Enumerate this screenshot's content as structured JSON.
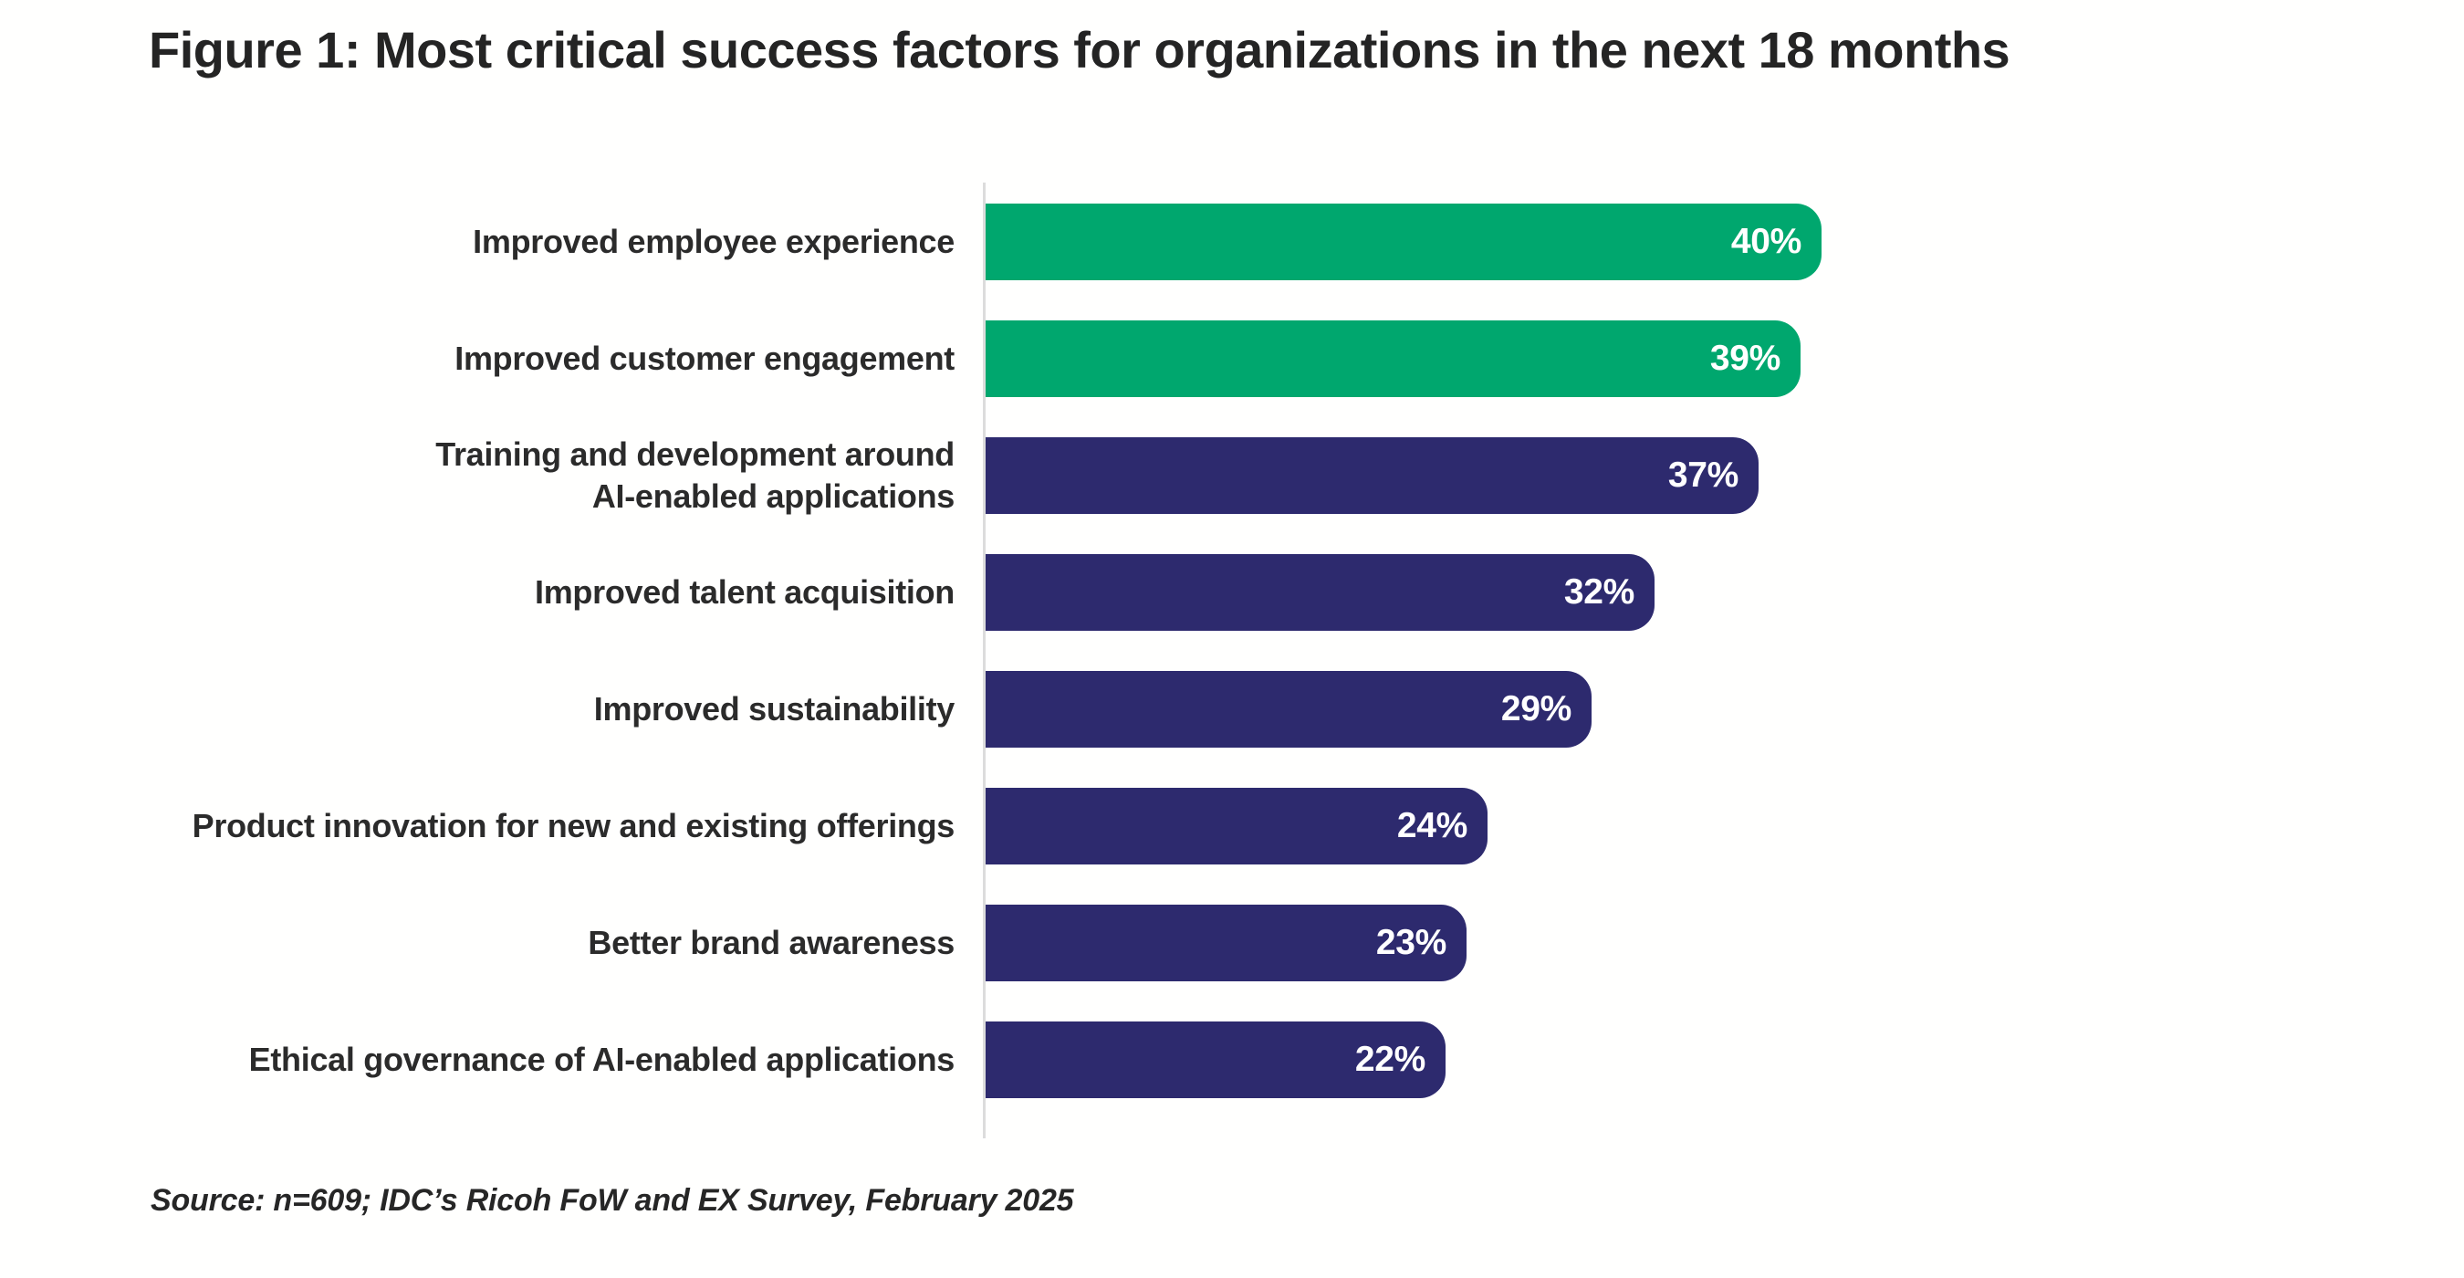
{
  "figure": {
    "title": "Figure 1: Most critical success factors for organizations in the next 18 months"
  },
  "chart_data": {
    "type": "bar",
    "orientation": "horizontal",
    "title": "Figure 1: Most critical success factors for organizations in the next 18 months",
    "categories": [
      "Improved employee experience",
      "Improved customer engagement",
      "Training and development around\nAI-enabled applications",
      "Improved talent acquisition",
      "Improved sustainability",
      "Product innovation for new and existing offerings",
      "Better brand awareness",
      "Ethical governance of AI-enabled applications"
    ],
    "values": [
      40,
      39,
      37,
      32,
      29,
      24,
      23,
      22
    ],
    "value_labels": [
      "40%",
      "39%",
      "37%",
      "32%",
      "29%",
      "24%",
      "23%",
      "22%"
    ],
    "unit": "%",
    "xlim": [
      0,
      40
    ],
    "grid": false,
    "legend": false,
    "bar_colors": [
      "#00A76E",
      "#00A76E",
      "#2D2A6E",
      "#2D2A6E",
      "#2D2A6E",
      "#2D2A6E",
      "#2D2A6E",
      "#2D2A6E"
    ],
    "colors": {
      "accent_green": "#00A76E",
      "accent_navy": "#2D2A6E",
      "value_text": "#FFFFFF",
      "label_text": "#2B2B2B",
      "axis_line": "#DCDCDC",
      "background": "#FFFFFE"
    }
  },
  "source": {
    "text": "Source: n=609; IDC’s Ricoh FoW and EX Survey, February 2025"
  }
}
